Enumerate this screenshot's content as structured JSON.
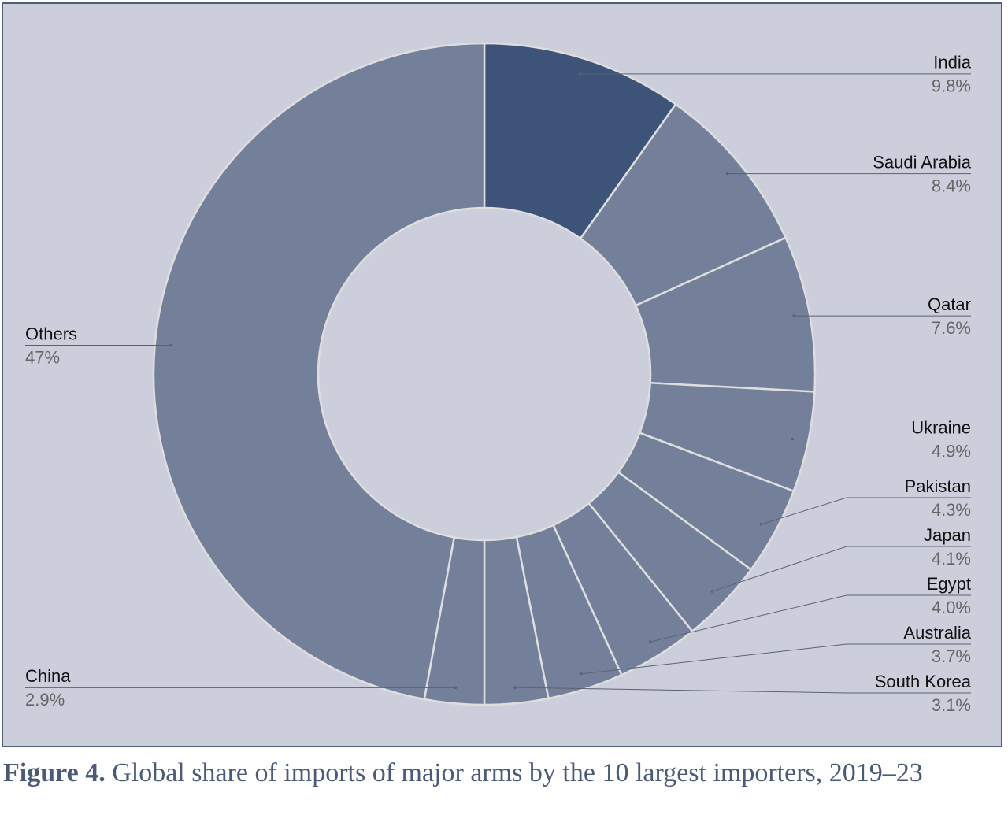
{
  "chart_data": {
    "type": "donut",
    "figure_label": "Figure 4.",
    "caption": "Global share of imports of major arms by the 10 largest importers, 2019–23",
    "categories": [
      "India",
      "Saudi Arabia",
      "Qatar",
      "Ukraine",
      "Pakistan",
      "Japan",
      "Egypt",
      "Australia",
      "South Korea",
      "China",
      "Others"
    ],
    "values": [
      9.8,
      8.4,
      7.6,
      4.9,
      4.3,
      4.1,
      4.0,
      3.7,
      3.1,
      2.9,
      47
    ],
    "value_labels": [
      "9.8%",
      "8.4%",
      "7.6%",
      "4.9%",
      "4.3%",
      "4.1%",
      "4.0%",
      "3.7%",
      "3.1%",
      "2.9%",
      "47%"
    ],
    "colors": [
      "#3d5478",
      "#74809a",
      "#74809a",
      "#74809a",
      "#74809a",
      "#74809a",
      "#74809a",
      "#74809a",
      "#74809a",
      "#74809a",
      "#74809a"
    ]
  }
}
